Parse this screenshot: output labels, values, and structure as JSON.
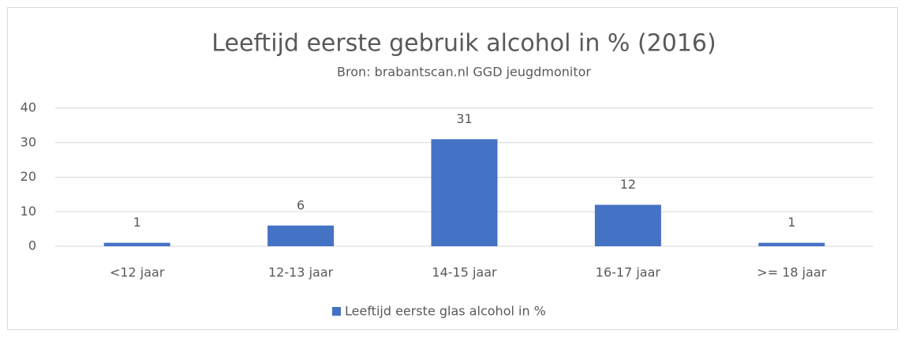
{
  "chart_data": {
    "type": "bar",
    "title": "Leeftijd eerste gebruik alcohol in % (2016)",
    "subtitle": "Bron: brabantscan.nl GGD jeugdmonitor",
    "categories": [
      "<12 jaar",
      "12-13 jaar",
      "14-15 jaar",
      "16-17 jaar",
      ">= 18 jaar"
    ],
    "series": [
      {
        "name": "Leeftijd eerste glas alcohol in %",
        "color": "#4472c4",
        "values": [
          1,
          6,
          31,
          12,
          1
        ]
      }
    ],
    "ylim": [
      0,
      40
    ],
    "yticks": [
      0,
      10,
      20,
      30,
      40
    ],
    "grid": true,
    "legend": "bottom"
  }
}
